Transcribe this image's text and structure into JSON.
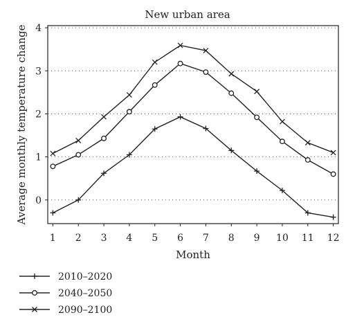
{
  "chart_data": {
    "type": "line",
    "title": "New urban area",
    "xlabel": "Month",
    "ylabel": "Average monthly temperature change",
    "x": [
      1,
      2,
      3,
      4,
      5,
      6,
      7,
      8,
      9,
      10,
      11,
      12
    ],
    "xlim": [
      0.8,
      12.2
    ],
    "ylim": [
      -0.55,
      4.05
    ],
    "xticks": [
      "1",
      "2",
      "3",
      "4",
      "5",
      "6",
      "7",
      "8",
      "9",
      "10",
      "11",
      "12"
    ],
    "yticks": [
      0,
      1,
      2,
      3,
      4
    ],
    "ytick_labels": [
      "0",
      "1",
      "2",
      "3",
      "4"
    ],
    "grid": "horizontal dotted",
    "legend_position": "below",
    "line_color": "#222222",
    "series": [
      {
        "name": "2010–2020",
        "marker": "plus",
        "values": [
          -0.3,
          0.0,
          0.62,
          1.05,
          1.65,
          1.93,
          1.66,
          1.15,
          0.67,
          0.22,
          -0.3,
          -0.4
        ]
      },
      {
        "name": "2040–2050",
        "marker": "circle",
        "values": [
          0.78,
          1.05,
          1.43,
          2.05,
          2.67,
          3.17,
          2.97,
          2.48,
          1.92,
          1.36,
          0.93,
          0.6
        ]
      },
      {
        "name": "2090–2100",
        "marker": "cross",
        "values": [
          1.08,
          1.38,
          1.93,
          2.44,
          3.2,
          3.59,
          3.47,
          2.93,
          2.52,
          1.82,
          1.33,
          1.1
        ]
      }
    ]
  }
}
